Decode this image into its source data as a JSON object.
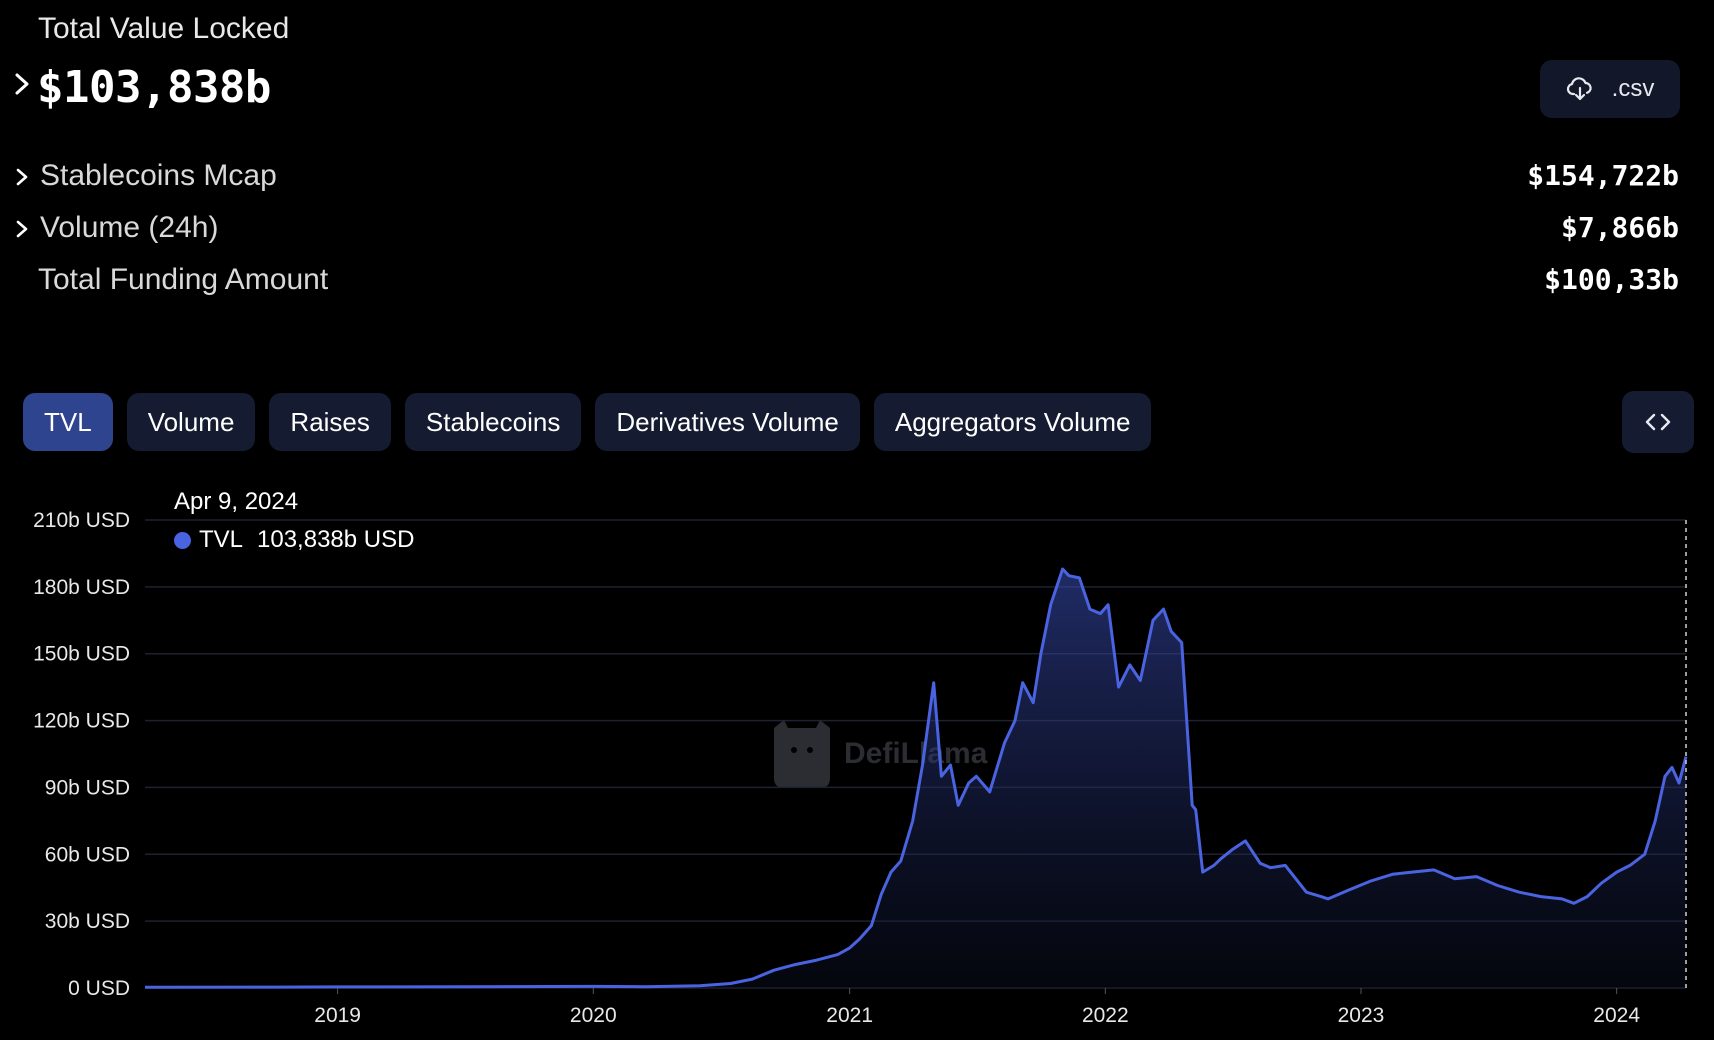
{
  "summary": {
    "tvl_label": "Total Value Locked",
    "tvl_value": "$103,838b",
    "csv_label": ".csv",
    "rows": [
      {
        "name": "Stablecoins Mcap",
        "value": "$154,722b"
      },
      {
        "name": "Volume (24h)",
        "value": "$7,866b"
      },
      {
        "name": "Total Funding Amount",
        "value": "$100,33b"
      }
    ]
  },
  "tabs": [
    "TVL",
    "Volume",
    "Raises",
    "Stablecoins",
    "Derivatives Volume",
    "Aggregators Volume"
  ],
  "active_tab": "TVL",
  "tooltip": {
    "date": "Apr 9, 2024",
    "series": "TVL",
    "value": "103,838b USD"
  },
  "watermark": "DefiLlama",
  "colors": {
    "accent": "#4a63e0",
    "tab_active": "#2f448e",
    "tab_bg": "#151b30",
    "background": "#000000"
  },
  "icons": {
    "tvl_expand": "chevron-right-icon",
    "csv": "cloud-download-icon",
    "embed": "code-brackets-icon"
  },
  "chart_data": {
    "type": "area",
    "y_tick_labels": [
      "0 USD",
      "30b USD",
      "60b USD",
      "90b USD",
      "120b USD",
      "150b USD",
      "180b USD",
      "210b USD"
    ],
    "x_tick_labels": [
      "2019",
      "2020",
      "2021",
      "2022",
      "2023",
      "2024"
    ],
    "ylim": [
      0,
      210
    ],
    "y_unit": "b USD",
    "xlim": [
      "2018-04-01",
      "2024-04-09"
    ],
    "grid": true,
    "series": [
      {
        "name": "TVL",
        "x": [
          "2018-04-01",
          "2018-10-01",
          "2019-01-01",
          "2019-07-01",
          "2020-01-01",
          "2020-03-15",
          "2020-06-01",
          "2020-07-15",
          "2020-08-15",
          "2020-09-15",
          "2020-10-15",
          "2020-11-15",
          "2020-12-15",
          "2021-01-01",
          "2021-01-15",
          "2021-02-01",
          "2021-02-15",
          "2021-03-01",
          "2021-03-15",
          "2021-04-01",
          "2021-04-15",
          "2021-05-01",
          "2021-05-12",
          "2021-05-25",
          "2021-06-05",
          "2021-06-20",
          "2021-07-01",
          "2021-07-20",
          "2021-08-10",
          "2021-08-25",
          "2021-09-05",
          "2021-09-20",
          "2021-10-01",
          "2021-10-15",
          "2021-11-01",
          "2021-11-10",
          "2021-11-25",
          "2021-12-10",
          "2021-12-25",
          "2022-01-05",
          "2022-01-20",
          "2022-02-05",
          "2022-02-20",
          "2022-03-10",
          "2022-03-25",
          "2022-04-05",
          "2022-04-20",
          "2022-05-05",
          "2022-05-10",
          "2022-05-20",
          "2022-06-05",
          "2022-06-15",
          "2022-07-01",
          "2022-07-20",
          "2022-08-10",
          "2022-08-25",
          "2022-09-15",
          "2022-10-15",
          "2022-11-05",
          "2022-11-15",
          "2022-12-15",
          "2023-01-15",
          "2023-02-15",
          "2023-03-15",
          "2023-04-15",
          "2023-05-15",
          "2023-06-15",
          "2023-07-15",
          "2023-08-15",
          "2023-09-15",
          "2023-10-15",
          "2023-11-01",
          "2023-11-20",
          "2023-12-10",
          "2024-01-01",
          "2024-01-20",
          "2024-02-10",
          "2024-02-25",
          "2024-03-10",
          "2024-03-20",
          "2024-03-30",
          "2024-04-09"
        ],
        "y": [
          0.3,
          0.4,
          0.5,
          0.6,
          0.7,
          0.6,
          1.0,
          2.0,
          4.0,
          8.0,
          10.5,
          12.5,
          15.0,
          18.0,
          22.0,
          28.0,
          42.0,
          52.0,
          57.0,
          75.0,
          100.0,
          137.0,
          95.0,
          100.0,
          82.0,
          92.0,
          95.0,
          88.0,
          110.0,
          120.0,
          137.0,
          128.0,
          150.0,
          172.0,
          188.0,
          185.0,
          184.0,
          170.0,
          168.0,
          172.0,
          135.0,
          145.0,
          138.0,
          165.0,
          170.0,
          160.0,
          155.0,
          82.0,
          80.0,
          52.0,
          55.0,
          58.0,
          62.0,
          66.0,
          56.0,
          54.0,
          55.0,
          43.0,
          41.0,
          40.0,
          44.0,
          48.0,
          51.0,
          52.0,
          53.0,
          49.0,
          50.0,
          46.0,
          43.0,
          41.0,
          40.0,
          38.0,
          41.0,
          47.0,
          52.0,
          55.0,
          60.0,
          75.0,
          95.0,
          99.0,
          92.0,
          103.838
        ]
      }
    ]
  }
}
